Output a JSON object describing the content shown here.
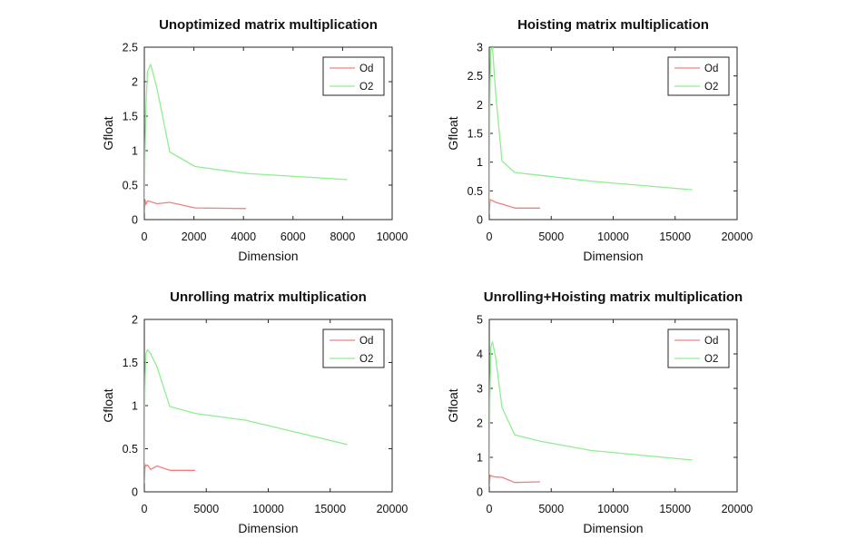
{
  "chart_data": [
    {
      "type": "line",
      "title": "Unoptimized matrix multiplication",
      "xlabel": "Dimension",
      "ylabel": "Gfloat",
      "xlim": [
        0,
        10000
      ],
      "ylim": [
        0,
        2.5
      ],
      "xticks": [
        0,
        2000,
        4000,
        6000,
        8000,
        10000
      ],
      "yticks": [
        0,
        0.5,
        1,
        1.5,
        2,
        2.5
      ],
      "ytick_labels": [
        "0",
        "0.5",
        "1",
        "1.5",
        "2",
        "2.5"
      ],
      "legend_position": "top-right",
      "series": [
        {
          "name": "Od",
          "color": "#f08080",
          "x": [
            0,
            32,
            64,
            128,
            256,
            512,
            1024,
            2048,
            4096
          ],
          "y": [
            0.1,
            0.28,
            0.22,
            0.27,
            0.26,
            0.23,
            0.25,
            0.17,
            0.16
          ]
        },
        {
          "name": "O2",
          "color": "#90ee90",
          "x": [
            0,
            32,
            64,
            128,
            256,
            512,
            1024,
            2048,
            4096,
            8192
          ],
          "y": [
            0.3,
            1.1,
            1.6,
            2.15,
            2.25,
            1.9,
            0.98,
            0.77,
            0.67,
            0.58
          ]
        }
      ]
    },
    {
      "type": "line",
      "title": "Hoisting matrix multiplication",
      "xlabel": "Dimension",
      "ylabel": "Gfloat",
      "xlim": [
        0,
        20000
      ],
      "ylim": [
        0,
        3
      ],
      "xticks": [
        0,
        5000,
        10000,
        15000,
        20000
      ],
      "yticks": [
        0,
        0.5,
        1,
        1.5,
        2,
        2.5,
        3
      ],
      "ytick_labels": [
        "0",
        "0.5",
        "1",
        "1.5",
        "2",
        "2.5",
        "3"
      ],
      "legend_position": "top-right",
      "series": [
        {
          "name": "Od",
          "color": "#f08080",
          "x": [
            0,
            64,
            128,
            256,
            512,
            1024,
            2048,
            4096
          ],
          "y": [
            0.1,
            0.35,
            0.34,
            0.33,
            0.3,
            0.27,
            0.2,
            0.2
          ]
        },
        {
          "name": "O2",
          "color": "#90ee90",
          "x": [
            0,
            32,
            64,
            128,
            256,
            512,
            1024,
            2048,
            4096,
            8192,
            16384
          ],
          "y": [
            0.3,
            1.5,
            2.4,
            2.95,
            3.0,
            2.2,
            1.02,
            0.82,
            0.77,
            0.67,
            0.52
          ]
        }
      ]
    },
    {
      "type": "line",
      "title": "Unrolling matrix multiplication",
      "xlabel": "Dimension",
      "ylabel": "Gfloat",
      "xlim": [
        0,
        20000
      ],
      "ylim": [
        0,
        2
      ],
      "xticks": [
        0,
        5000,
        10000,
        15000,
        20000
      ],
      "yticks": [
        0,
        0.5,
        1,
        1.5,
        2
      ],
      "ytick_labels": [
        "0",
        "0.5",
        "1",
        "1.5",
        "2"
      ],
      "legend_position": "top-right",
      "series": [
        {
          "name": "Od",
          "color": "#f08080",
          "x": [
            0,
            64,
            128,
            256,
            512,
            1024,
            2048,
            4096
          ],
          "y": [
            0.1,
            0.32,
            0.3,
            0.31,
            0.26,
            0.3,
            0.25,
            0.25
          ]
        },
        {
          "name": "O2",
          "color": "#90ee90",
          "x": [
            0,
            32,
            64,
            128,
            256,
            512,
            1024,
            2048,
            4096,
            8192,
            16384
          ],
          "y": [
            0.3,
            1.0,
            1.35,
            1.6,
            1.65,
            1.6,
            1.45,
            0.99,
            0.91,
            0.83,
            0.55
          ]
        }
      ]
    },
    {
      "type": "line",
      "title": "Unrolling+Hoisting matrix multiplication",
      "xlabel": "Dimension",
      "ylabel": "Gfloat",
      "xlim": [
        0,
        20000
      ],
      "ylim": [
        0,
        5
      ],
      "xticks": [
        0,
        5000,
        10000,
        15000,
        20000
      ],
      "yticks": [
        0,
        1,
        2,
        3,
        4,
        5
      ],
      "ytick_labels": [
        "0",
        "1",
        "2",
        "3",
        "4",
        "5"
      ],
      "legend_position": "top-right",
      "series": [
        {
          "name": "Od",
          "color": "#f08080",
          "x": [
            0,
            64,
            128,
            256,
            512,
            1024,
            2048,
            4096
          ],
          "y": [
            0.15,
            0.45,
            0.47,
            0.45,
            0.43,
            0.42,
            0.27,
            0.29
          ]
        },
        {
          "name": "O2",
          "color": "#90ee90",
          "x": [
            0,
            32,
            64,
            128,
            256,
            512,
            1024,
            2048,
            4096,
            8192,
            16384
          ],
          "y": [
            0.5,
            2.0,
            3.2,
            4.2,
            4.35,
            3.9,
            2.45,
            1.65,
            1.47,
            1.2,
            0.92
          ]
        }
      ]
    }
  ]
}
